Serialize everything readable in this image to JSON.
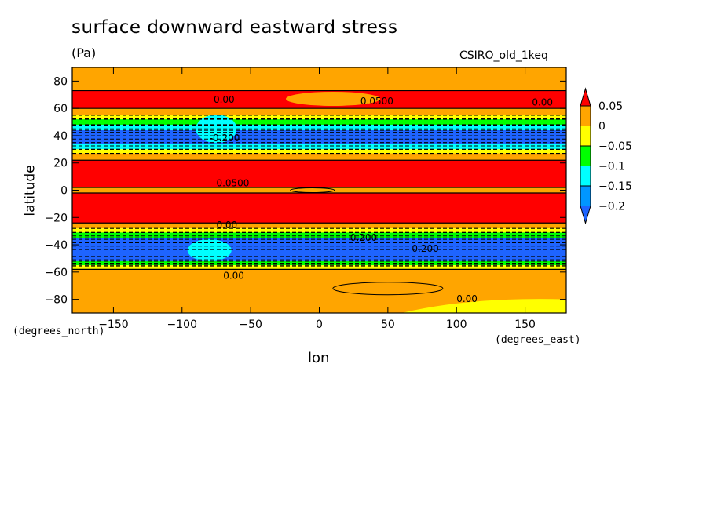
{
  "chart_data": {
    "type": "heatmap",
    "title": "surface downward eastward stress",
    "units": "(Pa)",
    "model": "CSIRO_old_1keq",
    "xlabel": "lon",
    "ylabel": "latitude",
    "x_units": "(degrees_east)",
    "y_units": "(degrees_north)",
    "xlim": [
      -180,
      180
    ],
    "ylim": [
      -90,
      90
    ],
    "x_ticks": [
      -150,
      -100,
      -50,
      0,
      50,
      100,
      150
    ],
    "y_ticks": [
      -80,
      -60,
      -40,
      -20,
      0,
      20,
      40,
      60,
      80
    ],
    "colorbar": {
      "levels": [
        "0.05",
        "0",
        "−0.05",
        "−0.1",
        "−0.15",
        "−0.2"
      ],
      "colors": [
        "#ff0000",
        "#ffa500",
        "#ffff00",
        "#00ff00",
        "#00ffff",
        "#0096ff",
        "#1e64ff"
      ]
    },
    "zonal_bands": [
      {
        "lat": [
          73,
          90
        ],
        "level": "0 to 0.05"
      },
      {
        "lat": [
          60,
          73
        ],
        "level": "0.05+"
      },
      {
        "lat": [
          55,
          60
        ],
        "level": "0 to 0.05"
      },
      {
        "lat": [
          52,
          55
        ],
        "level": "-0.05 to 0"
      },
      {
        "lat": [
          48,
          52
        ],
        "level": "-0.1 to -0.05"
      },
      {
        "lat": [
          44,
          48
        ],
        "level": "-0.15 to -0.1"
      },
      {
        "lat": [
          34,
          44
        ],
        "level": "-0.2 and below"
      },
      {
        "lat": [
          30,
          34
        ],
        "level": "-0.15 to -0.1"
      },
      {
        "lat": [
          27,
          30
        ],
        "level": "-0.05 to 0"
      },
      {
        "lat": [
          22,
          27
        ],
        "level": "0 to 0.05"
      },
      {
        "lat": [
          2,
          22
        ],
        "level": "0.05+"
      },
      {
        "lat": [
          -2,
          2
        ],
        "level": "0 to 0.05"
      },
      {
        "lat": [
          -24,
          -2
        ],
        "level": "0.05+"
      },
      {
        "lat": [
          -28,
          -24
        ],
        "level": "0 to 0.05"
      },
      {
        "lat": [
          -31,
          -28
        ],
        "level": "-0.05 to 0"
      },
      {
        "lat": [
          -35,
          -31
        ],
        "level": "-0.1 to -0.05"
      },
      {
        "lat": [
          -52,
          -35
        ],
        "level": "-0.2 and below"
      },
      {
        "lat": [
          -55,
          -52
        ],
        "level": "-0.1 to -0.05"
      },
      {
        "lat": [
          -58,
          -55
        ],
        "level": "-0.05 to 0"
      },
      {
        "lat": [
          -90,
          -58
        ],
        "level": "0 to 0.05"
      }
    ],
    "contour_labels": [
      "0.0500",
      "0.00",
      "-0.200",
      "0.00",
      "0.0500",
      "0.00",
      "-0.200",
      "-0.200",
      "0.00",
      "0.00"
    ]
  }
}
